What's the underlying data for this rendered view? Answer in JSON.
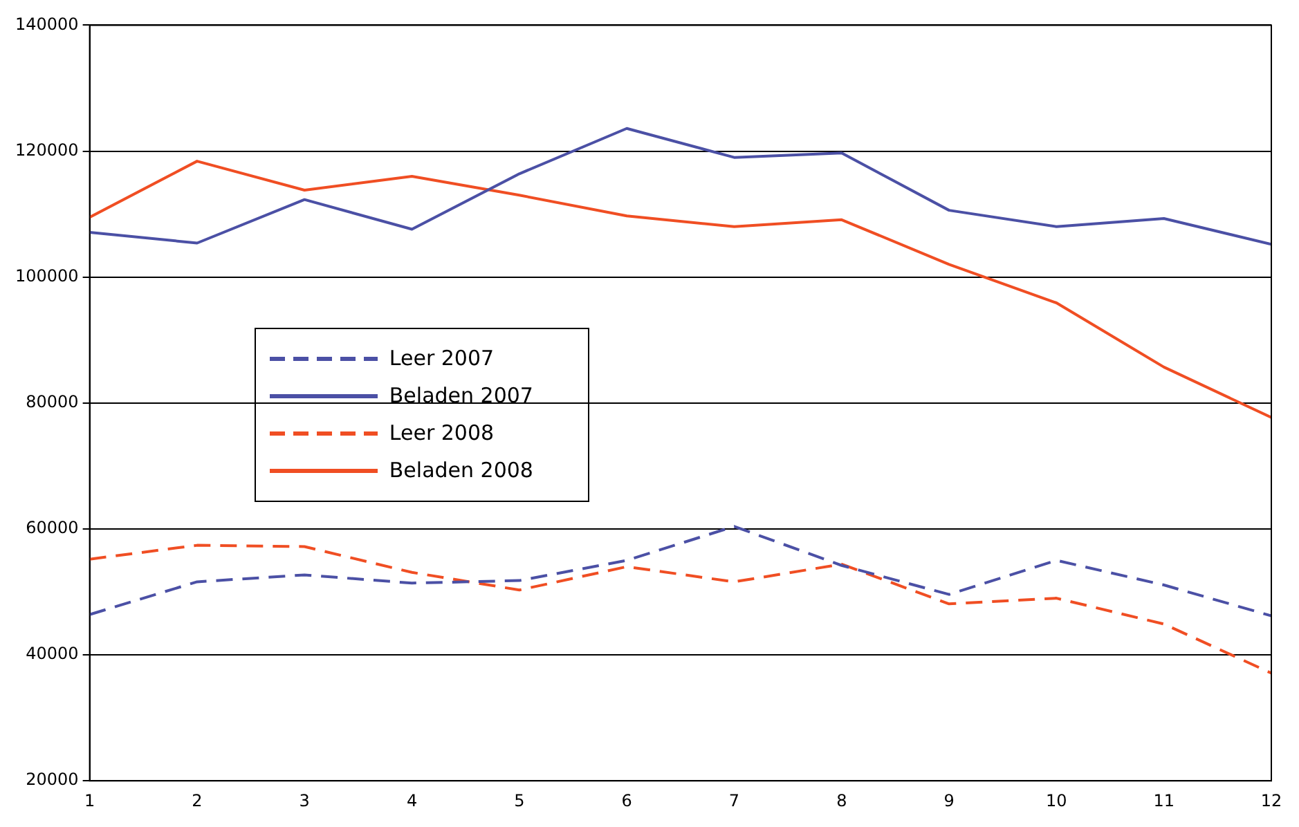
{
  "chart_data": {
    "type": "line",
    "x": [
      1,
      2,
      3,
      4,
      5,
      6,
      7,
      8,
      9,
      10,
      11,
      12
    ],
    "xlim": [
      1,
      12
    ],
    "xticks": [
      1,
      2,
      3,
      4,
      5,
      6,
      7,
      8,
      9,
      10,
      11,
      12
    ],
    "ylim": [
      20000,
      140000
    ],
    "yticks": [
      20000,
      40000,
      60000,
      80000,
      100000,
      120000,
      140000
    ],
    "grid": "y",
    "legend": "left",
    "marker": "none",
    "series": [
      {
        "name": "Leer 2007",
        "color": "#4b50a5",
        "line_style": "dashed",
        "values": [
          46400,
          51600,
          52700,
          51400,
          51800,
          55000,
          60400,
          54200,
          49600,
          55000,
          51100,
          46200
        ]
      },
      {
        "name": "Beladen 2007",
        "color": "#4b50a5",
        "line_style": "solid",
        "values": [
          107100,
          105400,
          112300,
          107600,
          116400,
          123600,
          119000,
          119700,
          110600,
          108000,
          109300,
          105200
        ]
      },
      {
        "name": "Leer 2008",
        "color": "#f04e23",
        "line_style": "dashed",
        "values": [
          55200,
          57400,
          57200,
          53100,
          50300,
          54000,
          51600,
          54400,
          48100,
          49000,
          44900,
          37100
        ]
      },
      {
        "name": "Beladen 2008",
        "color": "#f04e23",
        "line_style": "solid",
        "values": [
          109500,
          118400,
          113800,
          116000,
          113000,
          109700,
          108000,
          109100,
          102000,
          95900,
          85700,
          77700
        ]
      }
    ]
  }
}
